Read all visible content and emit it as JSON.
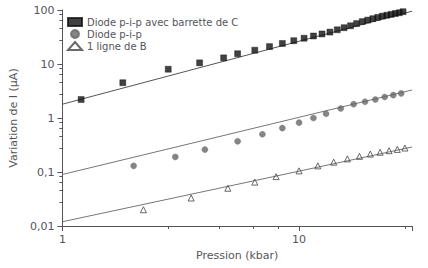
{
  "chart_data": {
    "type": "scatter",
    "xlabel": "Pression (kbar)",
    "ylabel": "Variation de I (μA)",
    "log": true,
    "grid": false,
    "legend": "upper left",
    "xlim": [
      1,
      30
    ],
    "ylim": [
      0.01,
      100
    ],
    "xticks": [
      1,
      10
    ],
    "yticks": [
      {
        "value": 0.01,
        "label": "0,01"
      },
      {
        "value": 0.1,
        "label": "0,1"
      },
      1,
      10,
      100
    ],
    "series": [
      {
        "name": "Diode p-i-p avec barrette de C",
        "type": "scatter",
        "marker": "square",
        "color": "#111111",
        "x": [
          1.2,
          1.8,
          2.8,
          3.8,
          4.8,
          5.5,
          6.5,
          7.5,
          8.5,
          9.5,
          10.5,
          11.5,
          12.5,
          13.5,
          14.5,
          15.5,
          16.5,
          17.5,
          18.5,
          19.5,
          20.5,
          21.5,
          22.5,
          23.5,
          24.5,
          25.5,
          26.5,
          27.5
        ],
        "values": [
          2.2,
          4.5,
          8.0,
          10.5,
          13.0,
          15.5,
          18.0,
          21.0,
          24.0,
          27.0,
          30.0,
          33.0,
          36.0,
          39.0,
          43.0,
          47.0,
          51.0,
          56.0,
          61.0,
          65.0,
          69.0,
          73.0,
          77.0,
          80.0,
          83.0,
          86.0,
          89.0,
          93.0
        ],
        "fit": {
          "type": "line",
          "color": "#555555",
          "x": [
            1.0,
            30.0
          ],
          "values": [
            1.8,
            95.0
          ]
        }
      },
      {
        "name": "Diode p-i-p",
        "type": "scatter",
        "marker": "circle",
        "color": "#666666",
        "x": [
          2.0,
          3.0,
          4.0,
          5.5,
          7.0,
          8.5,
          10.0,
          11.5,
          13.0,
          15.0,
          17.0,
          19.0,
          21.0,
          23.0,
          25.0,
          27.0
        ],
        "values": [
          0.13,
          0.19,
          0.26,
          0.37,
          0.5,
          0.65,
          0.82,
          1.0,
          1.2,
          1.5,
          1.8,
          2.0,
          2.2,
          2.45,
          2.65,
          2.85
        ],
        "fit": {
          "type": "line",
          "color": "#777777",
          "x": [
            1.0,
            30.0
          ],
          "values": [
            0.09,
            3.3
          ]
        }
      },
      {
        "name": "1 ligne de B",
        "type": "scatter",
        "marker": "open-triangle",
        "color": "#444444",
        "x": [
          2.2,
          3.5,
          5.0,
          6.5,
          8.0,
          10.0,
          12.0,
          14.0,
          16.0,
          18.0,
          20.0,
          22.0,
          24.0,
          26.0,
          28.0
        ],
        "values": [
          0.02,
          0.033,
          0.05,
          0.065,
          0.082,
          0.105,
          0.13,
          0.152,
          0.175,
          0.195,
          0.215,
          0.232,
          0.248,
          0.262,
          0.278
        ],
        "fit": {
          "type": "line",
          "color": "#777777",
          "x": [
            1.0,
            30.0
          ],
          "values": [
            0.012,
            0.29
          ]
        }
      }
    ]
  }
}
